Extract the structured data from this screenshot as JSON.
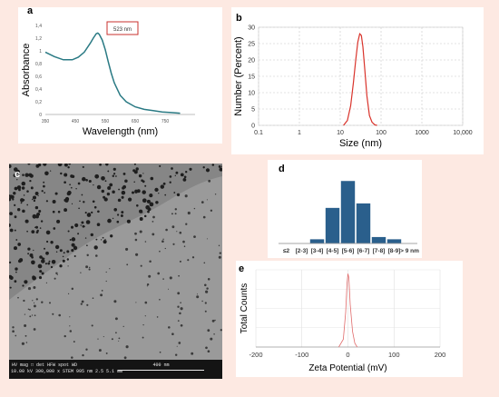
{
  "panels": {
    "a": "a",
    "b": "b",
    "c": "c",
    "d": "d",
    "e": "e"
  },
  "chart_data": [
    {
      "panel": "a",
      "type": "line",
      "xlabel": "Wavelength (nm)",
      "ylabel": "Absorbance",
      "xlim": [
        350,
        850
      ],
      "ylim": [
        0,
        1.4
      ],
      "xticks": [
        350,
        450,
        550,
        650,
        750
      ],
      "yticks": [
        "0",
        "0,2",
        "0,4",
        "0,6",
        "0,8",
        "1",
        "1,2",
        "1,4"
      ],
      "annotation": "523 nm",
      "grid": false,
      "color": "#2a7a84",
      "x": [
        350,
        380,
        410,
        440,
        460,
        480,
        500,
        510,
        520,
        525,
        530,
        540,
        550,
        560,
        570,
        580,
        600,
        620,
        650,
        680,
        710,
        740,
        770,
        800
      ],
      "y": [
        0.98,
        0.91,
        0.86,
        0.86,
        0.9,
        0.98,
        1.12,
        1.2,
        1.27,
        1.28,
        1.26,
        1.17,
        1.02,
        0.83,
        0.65,
        0.5,
        0.3,
        0.2,
        0.12,
        0.08,
        0.06,
        0.04,
        0.03,
        0.02
      ]
    },
    {
      "panel": "b",
      "type": "line",
      "xlabel": "Size (nm)",
      "ylabel": "Number (Percent)",
      "xscale": "log",
      "xlim": [
        0.1,
        10000
      ],
      "ylim": [
        0,
        30
      ],
      "xticks": [
        "0.1",
        "1",
        "10",
        "100",
        "1000",
        "10,000"
      ],
      "yticks": [
        0,
        5,
        10,
        15,
        20,
        25,
        30
      ],
      "grid": true,
      "color": "#d9332b",
      "x": [
        12,
        15,
        18,
        21,
        24,
        27,
        30,
        33,
        36,
        40,
        45,
        52,
        60,
        70,
        80
      ],
      "y": [
        0,
        1.5,
        6,
        13,
        20,
        25.5,
        28,
        27.5,
        24,
        17,
        9,
        3,
        1,
        0.2,
        0
      ]
    },
    {
      "panel": "d",
      "type": "bar",
      "categories": [
        "≤2",
        "[2-3]",
        "[3-4]",
        "[4-5]",
        "[5-6]",
        "[6-7]",
        "[7-8]",
        "[8-9]",
        "> 9 nm"
      ],
      "values": [
        0,
        0,
        2,
        16,
        28,
        18,
        3,
        2,
        0
      ],
      "ylim": [
        0,
        30
      ],
      "color": "#2a5f8c"
    },
    {
      "panel": "e",
      "type": "line",
      "xlabel": "Zeta Potential (mV)",
      "ylabel": "Total Counts",
      "xlim": [
        -200,
        200
      ],
      "ylim": [
        0,
        1
      ],
      "xticks": [
        -200,
        -100,
        0,
        100,
        200
      ],
      "grid": true,
      "color": "#e06a6a",
      "x": [
        -20,
        -10,
        -5,
        -2,
        0,
        2,
        5,
        10,
        15,
        20
      ],
      "y": [
        0,
        0.1,
        0.45,
        0.82,
        0.95,
        0.9,
        0.55,
        0.2,
        0.05,
        0
      ]
    }
  ],
  "sem_image": {
    "scale_label": "400 nm",
    "info_header": "HV   mag □   det   HFW   spot   WD",
    "info_values": "10.00 kV  300,000 x  STEM  995 nm  2.5  5.1 mm"
  },
  "colors": {
    "background": "#fde9e2",
    "absorbance_line": "#2a7a84",
    "size_line": "#d9332b",
    "histogram_bar": "#2a5f8c",
    "zeta_line": "#e06a6a",
    "annotation_box": "#c9302c"
  }
}
